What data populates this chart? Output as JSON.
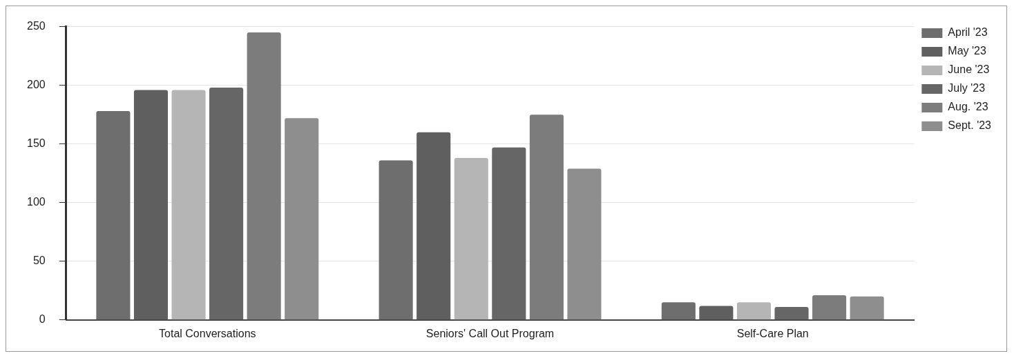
{
  "chart_data": {
    "type": "bar",
    "categories": [
      "Total Conversations",
      "Seniors' Call Out Program",
      "Self-Care Plan"
    ],
    "series": [
      {
        "name": "April '23",
        "color": "#6e6e6e",
        "values": [
          178,
          136,
          15
        ]
      },
      {
        "name": "May '23",
        "color": "#5f5f5f",
        "values": [
          196,
          160,
          12
        ]
      },
      {
        "name": "June '23",
        "color": "#b5b5b5",
        "values": [
          196,
          138,
          15
        ]
      },
      {
        "name": "July '23",
        "color": "#666666",
        "values": [
          198,
          147,
          11
        ]
      },
      {
        "name": "Aug. '23",
        "color": "#7c7c7c",
        "values": [
          245,
          175,
          21
        ]
      },
      {
        "name": "Sept. '23",
        "color": "#8e8e8e",
        "values": [
          172,
          129,
          20
        ]
      }
    ],
    "ylim": [
      0,
      250
    ],
    "yticks": [
      0,
      50,
      100,
      150,
      200,
      250
    ],
    "grid": "y",
    "legend": "top right"
  }
}
